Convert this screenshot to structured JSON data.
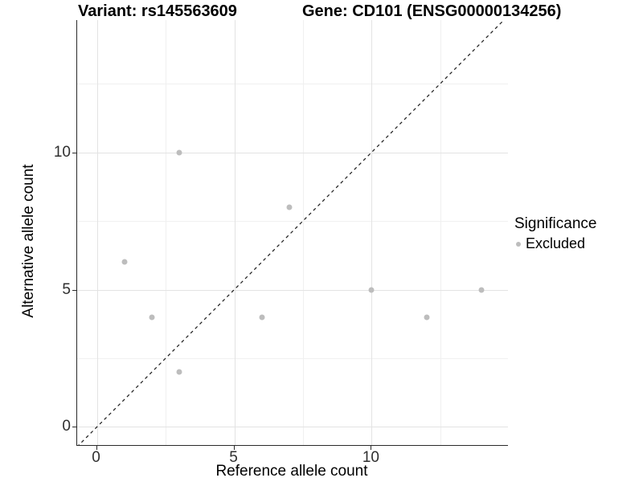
{
  "titles": {
    "left": "Variant: rs145563609",
    "right": "Gene: CD101 (ENSG00000134256)"
  },
  "chart_data": {
    "type": "scatter",
    "xlabel": "Reference allele count",
    "ylabel": "Alternative allele count",
    "xlim": [
      -0.72,
      14.96
    ],
    "ylim": [
      -0.66,
      14.81
    ],
    "grid": true,
    "x_ticks": {
      "values": [
        0,
        5,
        10
      ],
      "labels": [
        "0",
        "5",
        "10"
      ]
    },
    "y_ticks": {
      "values": [
        0,
        5,
        10
      ],
      "labels": [
        "0",
        "5",
        "10"
      ]
    },
    "x_minor_ticks": [
      2.5,
      7.5,
      12.5
    ],
    "y_minor_ticks": [
      2.5,
      7.5,
      12.5
    ],
    "identity_line": {
      "slope": 1,
      "intercept": 0,
      "style": "dashed",
      "color": "#1a1a1a"
    },
    "series": [
      {
        "name": "Excluded",
        "color": "#bdbdbd",
        "points": [
          {
            "x": 1,
            "y": 6
          },
          {
            "x": 2,
            "y": 4
          },
          {
            "x": 3,
            "y": 10
          },
          {
            "x": 3,
            "y": 2
          },
          {
            "x": 6,
            "y": 4
          },
          {
            "x": 7,
            "y": 8
          },
          {
            "x": 10,
            "y": 5
          },
          {
            "x": 12,
            "y": 4
          },
          {
            "x": 14,
            "y": 5
          }
        ]
      }
    ],
    "legend": {
      "title": "Significance",
      "position": "right",
      "items": [
        {
          "label": "Excluded",
          "color": "#bdbdbd"
        }
      ]
    }
  },
  "colors": {
    "background": "#ffffff",
    "grid_major": "#e3e3e3",
    "grid_minor": "#f0f0f0",
    "axis_line": "#2a2a2a",
    "point": "#bdbdbd"
  }
}
